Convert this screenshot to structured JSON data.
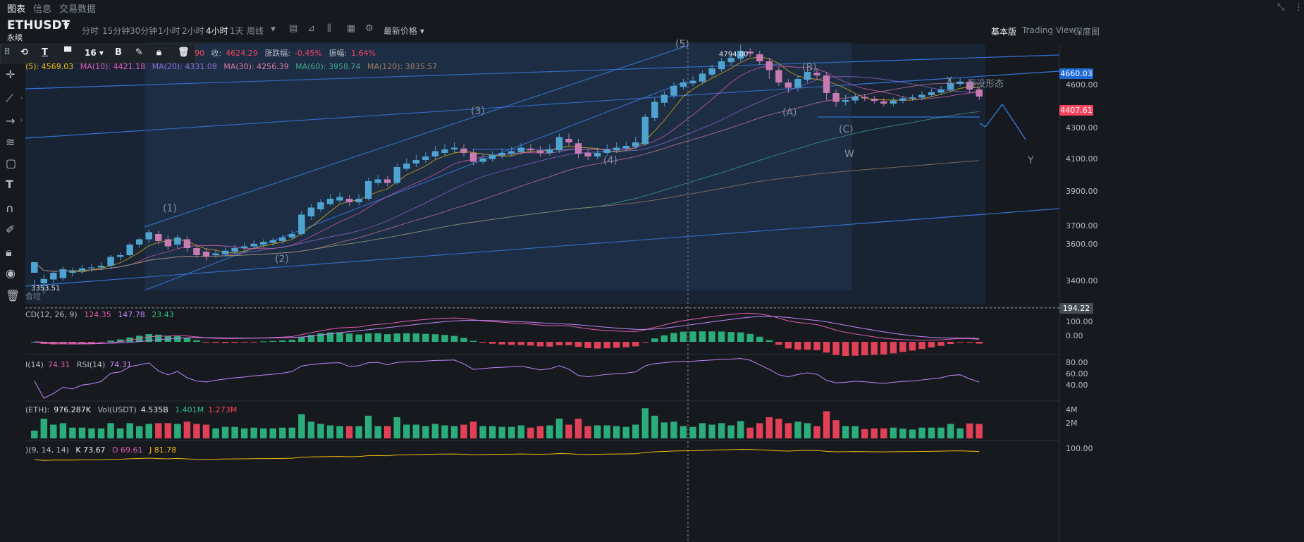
{
  "top_tabs": [
    "图表",
    "信息",
    "交易数据"
  ],
  "symbol": "ETHUSDT",
  "contract_type": "永续",
  "intervals": [
    "分时",
    "15分钟",
    "30分钟",
    "1小时",
    "2小时",
    "4小时",
    "1天",
    "周线"
  ],
  "active_interval": "4小时",
  "latest_price_label": "最新价格",
  "views": [
    "基本版",
    "Trading View",
    "深度图"
  ],
  "active_view": "基本版",
  "drawbar": {
    "font_size": "16",
    "bold": "B",
    "text_tool": "T"
  },
  "ohlc_legend": {
    "open_tail": "90",
    "close_label": "收:",
    "close": "4624.29",
    "chg_label": "涨跌幅:",
    "chg": "-0.45%",
    "amp_label": "振幅:",
    "amp": "1.64%"
  },
  "ma_legend": {
    "ma5": "(5): 4569.03",
    "ma10": "MA(10): 4421.18",
    "ma20": "MA(20): 4331.08",
    "ma30": "MA(30): 4256.39",
    "ma60": "MA(60): 3958.74",
    "ma120": "MA(120): 3835.57"
  },
  "macd_legend": {
    "name": "CD(12, 26, 9)",
    "dif": "124.35",
    "dea": "147.78",
    "hist": "23.43"
  },
  "rsi_legend": {
    "name": "I(14)",
    "v1": "74.31",
    "name2": "RSI(14)",
    "v2": "74.31"
  },
  "vol_legend": {
    "name": "(ETH):",
    "v1": "976.287K",
    "name2": "Vol(USDT)",
    "v2": "4.535B",
    "v3": "1.401M",
    "v4": "1.273M"
  },
  "kdj_legend": {
    "name": ")(9, 14, 14)",
    "k": "K 73.67",
    "d": "D 69.61",
    "j": "J 81.78"
  },
  "price_axis": [
    "4600.00",
    "4300.00",
    "4100.00",
    "3900.00",
    "3700.00",
    "3600.00",
    "3400.00"
  ],
  "price_boxes": {
    "high": "4660.03",
    "current": "4407.61",
    "crosshair": "194.22"
  },
  "macd_axis": [
    "100.00",
    "0.00"
  ],
  "rsi_axis": [
    "80.00",
    "60.00",
    "40.00"
  ],
  "vol_axis": [
    "4M",
    "2M"
  ],
  "kdj_axis": [
    "100.00"
  ],
  "annotations": {
    "high": "4794.00",
    "low": "3353.51",
    "low_prefix": "合垃",
    "pattern": "吞没形态"
  },
  "wave_labels": [
    "(1)",
    "(2)",
    "(3)",
    "(4)",
    "(5)",
    "(A)",
    "(B)",
    "(C)",
    "W",
    "X",
    "Y"
  ],
  "colors": {
    "up": "#2ebd85",
    "down": "#f6465d",
    "up_candle": "#4fa3d1",
    "down_candle": "#c77bb0",
    "ma5": "#f0b90b",
    "ma10": "#e05cb4",
    "ma20": "#8e6ccf",
    "ma30": "#d77b9a",
    "ma60": "#3fa88b",
    "ma120": "#a18162",
    "trend": "#3b82f6"
  },
  "chart_data": {
    "type": "candlestick",
    "symbol": "ETHUSDT",
    "interval": "4小时",
    "price_range": [
      3320,
      4800
    ],
    "candles": [
      [
        3500,
        3560,
        3460,
        3430
      ],
      [
        3440,
        3465,
        3490,
        3380
      ],
      [
        3462,
        3500,
        3510,
        3440
      ],
      [
        3470,
        3520,
        3535,
        3455
      ],
      [
        3500,
        3510,
        3530,
        3480
      ],
      [
        3510,
        3525,
        3545,
        3495
      ],
      [
        3525,
        3530,
        3550,
        3505
      ],
      [
        3530,
        3540,
        3560,
        3515
      ],
      [
        3540,
        3590,
        3600,
        3520
      ],
      [
        3590,
        3600,
        3615,
        3570
      ],
      [
        3600,
        3660,
        3670,
        3590
      ],
      [
        3660,
        3690,
        3700,
        3640
      ],
      [
        3690,
        3730,
        3745,
        3670
      ],
      [
        3720,
        3680,
        3740,
        3660
      ],
      [
        3690,
        3650,
        3710,
        3630
      ],
      [
        3660,
        3700,
        3715,
        3640
      ],
      [
        3690,
        3640,
        3710,
        3620
      ],
      [
        3640,
        3600,
        3660,
        3585
      ],
      [
        3620,
        3590,
        3640,
        3570
      ],
      [
        3600,
        3610,
        3630,
        3585
      ],
      [
        3605,
        3625,
        3645,
        3590
      ],
      [
        3620,
        3640,
        3660,
        3605
      ],
      [
        3640,
        3650,
        3670,
        3625
      ],
      [
        3650,
        3665,
        3685,
        3635
      ],
      [
        3660,
        3675,
        3690,
        3645
      ],
      [
        3670,
        3685,
        3700,
        3655
      ],
      [
        3680,
        3700,
        3715,
        3665
      ],
      [
        3700,
        3720,
        3740,
        3690
      ],
      [
        3720,
        3830,
        3850,
        3710
      ],
      [
        3820,
        3870,
        3890,
        3800
      ],
      [
        3860,
        3900,
        3920,
        3845
      ],
      [
        3890,
        3920,
        3945,
        3880
      ],
      [
        3910,
        3930,
        3955,
        3895
      ],
      [
        3920,
        3900,
        3940,
        3880
      ],
      [
        3900,
        3920,
        3945,
        3885
      ],
      [
        3920,
        4020,
        4040,
        3910
      ],
      [
        4010,
        4030,
        4055,
        3995
      ],
      [
        4030,
        4010,
        4050,
        3990
      ],
      [
        4010,
        4100,
        4120,
        4000
      ],
      [
        4090,
        4120,
        4150,
        4080
      ],
      [
        4120,
        4140,
        4170,
        4100
      ],
      [
        4140,
        4160,
        4185,
        4125
      ],
      [
        4160,
        4190,
        4220,
        4145
      ],
      [
        4180,
        4200,
        4230,
        4165
      ],
      [
        4200,
        4210,
        4240,
        4180
      ],
      [
        4205,
        4180,
        4230,
        4160
      ],
      [
        4180,
        4130,
        4200,
        4110
      ],
      [
        4130,
        4150,
        4175,
        4115
      ],
      [
        4145,
        4170,
        4190,
        4130
      ],
      [
        4165,
        4180,
        4205,
        4150
      ],
      [
        4175,
        4190,
        4215,
        4160
      ],
      [
        4185,
        4210,
        4235,
        4170
      ],
      [
        4205,
        4195,
        4230,
        4180
      ],
      [
        4195,
        4180,
        4220,
        4160
      ],
      [
        4180,
        4200,
        4230,
        4165
      ],
      [
        4195,
        4270,
        4290,
        4180
      ],
      [
        4260,
        4240,
        4290,
        4220
      ],
      [
        4235,
        4175,
        4260,
        4150
      ],
      [
        4180,
        4160,
        4200,
        4140
      ],
      [
        4160,
        4180,
        4210,
        4145
      ],
      [
        4180,
        4200,
        4230,
        4165
      ],
      [
        4195,
        4210,
        4240,
        4180
      ],
      [
        4205,
        4220,
        4245,
        4190
      ],
      [
        4215,
        4240,
        4270,
        4200
      ],
      [
        4230,
        4385,
        4400,
        4220
      ],
      [
        4380,
        4470,
        4490,
        4360
      ],
      [
        4465,
        4510,
        4530,
        4445
      ],
      [
        4505,
        4560,
        4580,
        4490
      ],
      [
        4555,
        4580,
        4600,
        4540
      ],
      [
        4575,
        4590,
        4615,
        4560
      ],
      [
        4585,
        4630,
        4650,
        4570
      ],
      [
        4625,
        4660,
        4680,
        4610
      ],
      [
        4655,
        4700,
        4720,
        4640
      ],
      [
        4695,
        4720,
        4745,
        4680
      ],
      [
        4715,
        4760,
        4794,
        4700
      ],
      [
        4755,
        4745,
        4775,
        4725
      ],
      [
        4740,
        4700,
        4760,
        4680
      ],
      [
        4700,
        4650,
        4720,
        4600
      ],
      [
        4650,
        4580,
        4670,
        4560
      ],
      [
        4580,
        4550,
        4600,
        4520
      ],
      [
        4550,
        4600,
        4620,
        4530
      ],
      [
        4595,
        4640,
        4660,
        4580
      ],
      [
        4635,
        4620,
        4660,
        4600
      ],
      [
        4620,
        4520,
        4640,
        4480
      ],
      [
        4520,
        4470,
        4540,
        4440
      ],
      [
        4470,
        4480,
        4510,
        4450
      ],
      [
        4478,
        4500,
        4520,
        4460
      ],
      [
        4498,
        4490,
        4515,
        4475
      ],
      [
        4488,
        4475,
        4505,
        4460
      ],
      [
        4473,
        4460,
        4490,
        4445
      ],
      [
        4460,
        4478,
        4495,
        4445
      ],
      [
        4476,
        4490,
        4505,
        4462
      ],
      [
        4488,
        4495,
        4512,
        4475
      ],
      [
        4494,
        4510,
        4530,
        4480
      ],
      [
        4508,
        4525,
        4545,
        4495
      ],
      [
        4522,
        4540,
        4560,
        4510
      ],
      [
        4538,
        4575,
        4600,
        4525
      ],
      [
        4572,
        4585,
        4605,
        4560
      ],
      [
        4583,
        4540,
        4598,
        4520
      ],
      [
        4540,
        4500,
        4555,
        4480
      ]
    ],
    "volume_range": [
      0,
      4000000
    ],
    "macd_range": [
      -60,
      180
    ],
    "rsi_range": [
      20,
      90
    ],
    "annotations": {
      "high": 4794.0,
      "low": 3353.51
    }
  }
}
